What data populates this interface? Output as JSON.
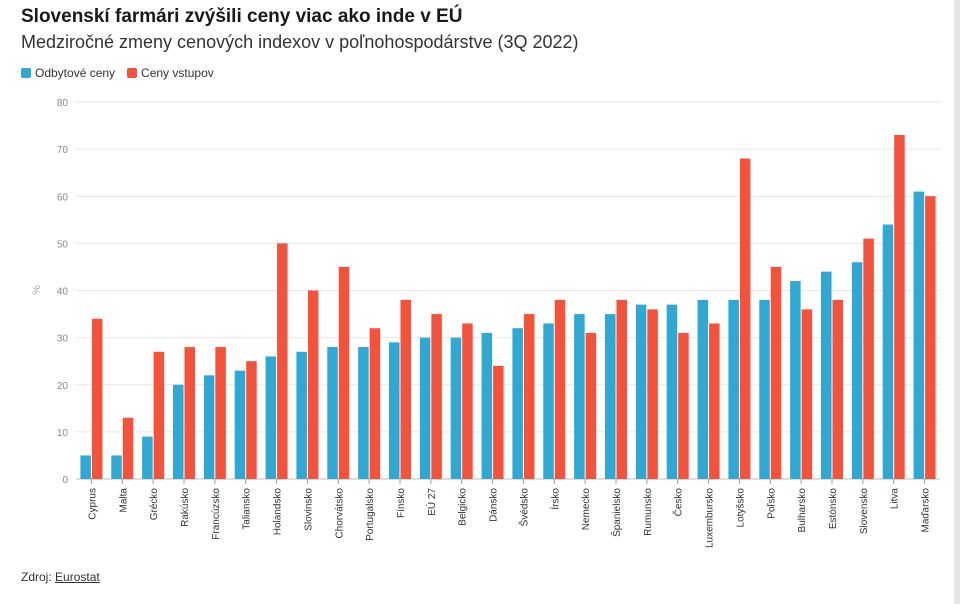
{
  "title": "Slovenskí farmári zvýšili ceny viac ako inde v EÚ",
  "subtitle": "Medziročné zmeny cenových indexov v poľnohospodárstve (3Q 2022)",
  "source": {
    "label": "Zdroj:",
    "link_text": "Eurostat"
  },
  "colors": {
    "odbytove": "#2fa8d4",
    "vstupov": "#f4523b",
    "grid": "#e6e6e6",
    "axis_text": "#888888"
  },
  "chart_data": {
    "type": "bar",
    "title": "Slovenskí farmári zvýšili ceny viac ako inde v EÚ",
    "subtitle": "Medziročné zmeny cenových indexov v poľnohospodárstve (3Q 2022)",
    "xlabel": "",
    "ylabel": "%",
    "ylim": [
      0,
      80
    ],
    "yticks": [
      0,
      10,
      20,
      30,
      40,
      50,
      60,
      70,
      80
    ],
    "grid": true,
    "legend_position": "top-left",
    "categories": [
      "Cyprus",
      "Malta",
      "Grécko",
      "Rakúsko",
      "Francúzsko",
      "Taliansko",
      "Holandsko",
      "Slovinsko",
      "Chorvátsko",
      "Portugalsko",
      "Fínsko",
      "EÚ 27",
      "Belgicko",
      "Dánsko",
      "Švédsko",
      "Írsko",
      "Nemecko",
      "Španielsko",
      "Rumunsko",
      "Česko",
      "Luxembursko",
      "Lotyšsko",
      "Poľsko",
      "Bulharsko",
      "Estónsko",
      "Slovensko",
      "Litva",
      "Maďarsko"
    ],
    "series": [
      {
        "name": "Odbytové ceny",
        "color": "#2fa8d4",
        "values": [
          5,
          5,
          9,
          20,
          22,
          23,
          26,
          27,
          28,
          28,
          29,
          30,
          30,
          31,
          32,
          33,
          35,
          35,
          37,
          37,
          38,
          38,
          38,
          42,
          44,
          46,
          54,
          61
        ]
      },
      {
        "name": "Ceny vstupov",
        "color": "#f4523b",
        "values": [
          34,
          13,
          27,
          28,
          28,
          25,
          50,
          40,
          45,
          32,
          38,
          35,
          33,
          24,
          35,
          38,
          31,
          38,
          36,
          31,
          33,
          68,
          45,
          36,
          38,
          51,
          73,
          60
        ]
      }
    ]
  }
}
